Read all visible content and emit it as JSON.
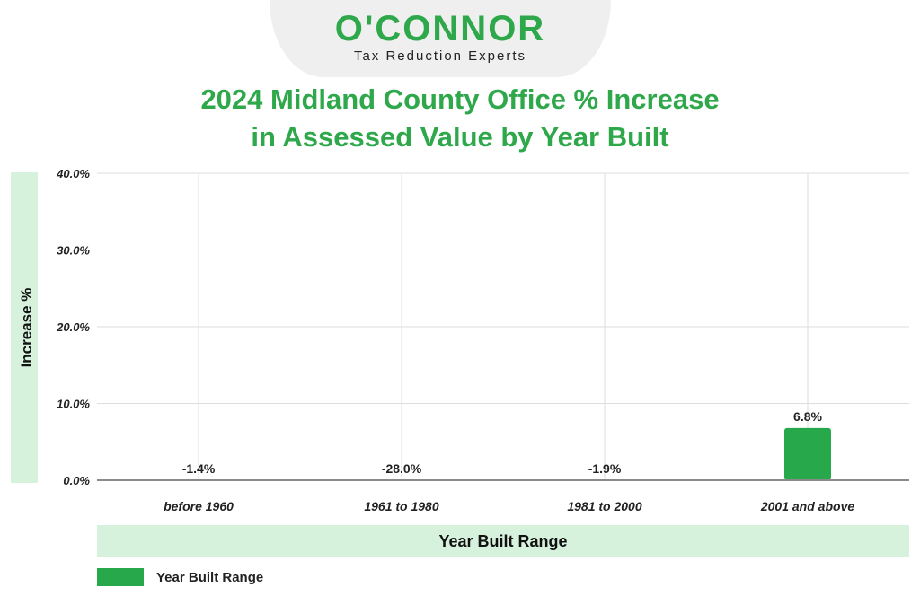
{
  "logo": {
    "wordmark": "O'CONNOR",
    "tagline": "Tax Reduction Experts"
  },
  "colors": {
    "brand": "#2ea84a",
    "bar": "#27a84a",
    "band": "#d6f1dc"
  },
  "chart_data": {
    "type": "bar",
    "title_line1": "2024 Midland County Office % Increase",
    "title_line2": "in Assessed Value by Year Built",
    "xlabel": "Year Built Range",
    "ylabel": "Increase %",
    "categories": [
      "before 1960",
      "1961 to 1980",
      "1981 to 2000",
      "2001 and above"
    ],
    "values": [
      -1.4,
      -28.0,
      -1.9,
      6.8
    ],
    "data_labels": [
      "-1.4%",
      "-28.0%",
      "-1.9%",
      "6.8%"
    ],
    "ylim": [
      0,
      40
    ],
    "yticks": [
      0,
      10,
      20,
      30,
      40
    ],
    "ytick_labels": [
      "0.0%",
      "10.0%",
      "20.0%",
      "30.0%",
      "40.0%"
    ],
    "grid": true,
    "legend": {
      "position": "bottom-left",
      "label": "Year Built Range"
    }
  }
}
